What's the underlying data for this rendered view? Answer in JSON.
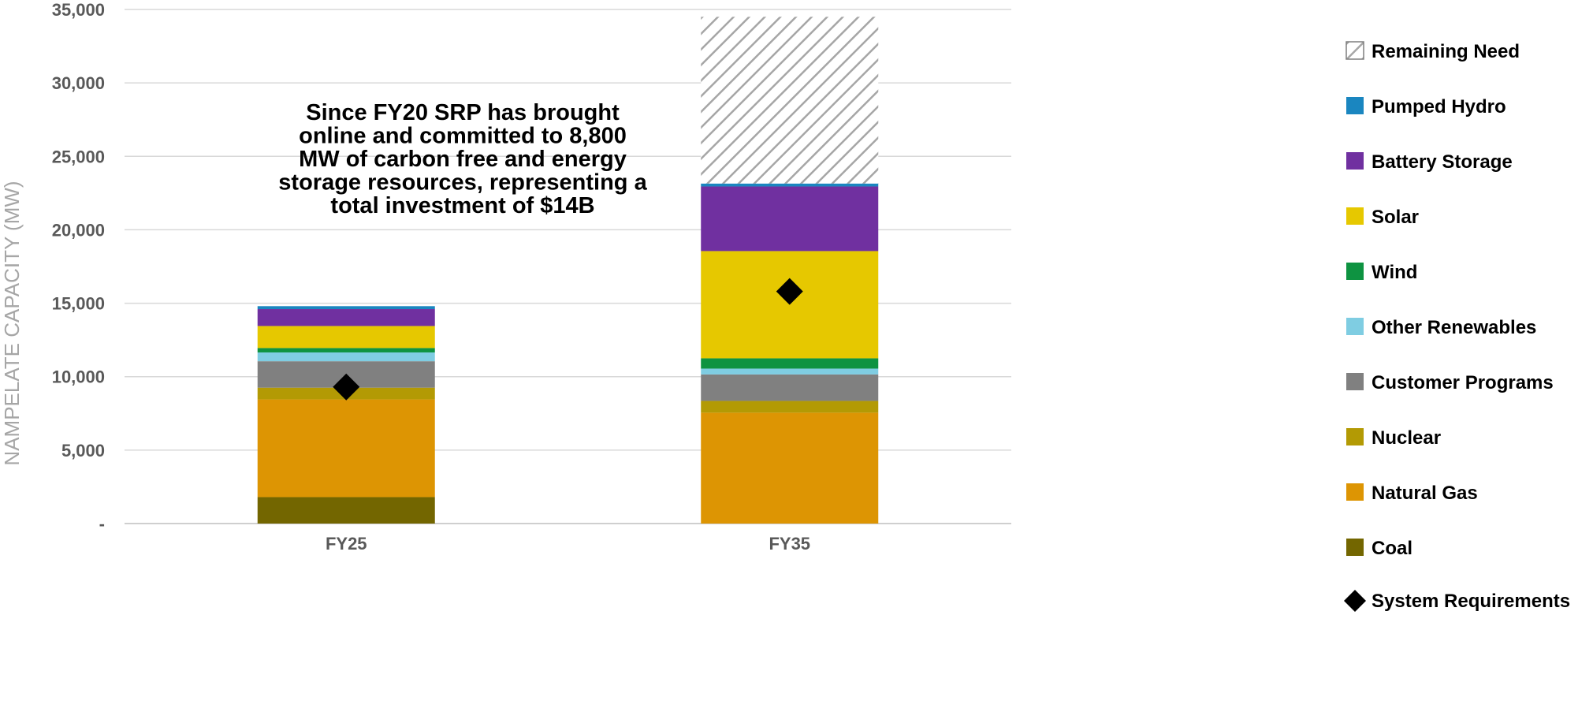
{
  "chart_data": {
    "type": "bar",
    "stacked": true,
    "title": "",
    "xlabel": "",
    "ylabel": "NAMPELATE CAPACITY (MW)",
    "ylim": [
      0,
      35000
    ],
    "y_ticks": [
      0,
      5000,
      10000,
      15000,
      20000,
      25000,
      30000,
      35000
    ],
    "y_tick_labels": [
      "-",
      "5,000",
      "10,000",
      "15,000",
      "20,000",
      "25,000",
      "30,000",
      "35,000"
    ],
    "grid": true,
    "legend_position": "right",
    "categories": [
      "FY25",
      "FY35"
    ],
    "series": [
      {
        "name": "Coal",
        "color": "#736600",
        "values": [
          1800,
          0
        ]
      },
      {
        "name": "Natural Gas",
        "color": "#dd9503",
        "values": [
          6650,
          7550
        ]
      },
      {
        "name": "Nuclear",
        "color": "#b39a04",
        "values": [
          800,
          800
        ]
      },
      {
        "name": "Customer Programs",
        "color": "#808080",
        "values": [
          1800,
          1800
        ]
      },
      {
        "name": "Other Renewables",
        "color": "#7fcde2",
        "values": [
          600,
          400
        ]
      },
      {
        "name": "Wind",
        "color": "#0e9341",
        "values": [
          300,
          700
        ]
      },
      {
        "name": "Solar",
        "color": "#e6c800",
        "values": [
          1500,
          7300
        ]
      },
      {
        "name": "Battery Storage",
        "color": "#7030a0",
        "values": [
          1150,
          4400
        ]
      },
      {
        "name": "Pumped Hydro",
        "color": "#1a86c0",
        "values": [
          200,
          200
        ]
      },
      {
        "name": "Remaining Need",
        "color": "#a6a6a6",
        "pattern": "diagonal-hatch",
        "values": [
          0,
          11350
        ]
      }
    ],
    "markers": {
      "name": "System Requirements",
      "shape": "diamond",
      "color": "#000000",
      "values": [
        9300,
        15800
      ]
    },
    "legend_order": [
      "Remaining Need",
      "Pumped Hydro",
      "Battery Storage",
      "Solar",
      "Wind",
      "Other Renewables",
      "Customer Programs",
      "Nuclear",
      "Natural Gas",
      "Coal",
      "System Requirements"
    ],
    "annotation": {
      "lines": [
        "Since FY20 SRP has brought",
        "online and committed to 8,800",
        "MW of carbon free and energy",
        "storage resources, representing a",
        "total investment of $14B"
      ]
    }
  }
}
